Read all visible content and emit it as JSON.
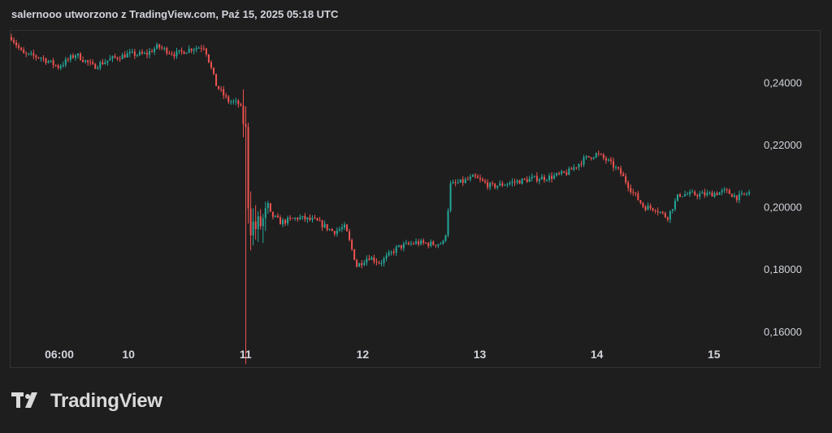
{
  "caption": "salernooo utworzono z TradingView.com, Paź 15, 2025 05:18 UTC",
  "logo": {
    "icon": "tradingview-logo-icon",
    "text": "TradingView"
  },
  "colors": {
    "background": "#1e1e1e",
    "up": "#26a69a",
    "down": "#ef5350",
    "text": "#d1d4dc",
    "border": "#333333"
  },
  "chart_data": {
    "type": "candlestick",
    "title": "",
    "xlabel": "",
    "ylabel": "",
    "ylim": [
      0.149,
      0.256
    ],
    "grid": false,
    "y_ticks": [
      "0,24000",
      "0,22000",
      "0,20000",
      "0,18000",
      "0,16000"
    ],
    "y_tick_values": [
      0.24,
      0.22,
      0.2,
      0.18,
      0.16
    ],
    "x_ticks": [
      "06:00",
      "10",
      "11",
      "12",
      "13",
      "14",
      "15"
    ],
    "x_tick_days": [
      9.25,
      10,
      11,
      12,
      13,
      14,
      15
    ],
    "x_range_days": [
      9.0,
      15.3
    ],
    "series": [
      {
        "values_close_by_day": [
          [
            9.0,
            0.2545
          ],
          [
            9.1,
            0.249
          ],
          [
            9.25,
            0.248
          ],
          [
            9.4,
            0.245
          ],
          [
            9.55,
            0.249
          ],
          [
            9.7,
            0.245
          ],
          [
            9.85,
            0.2475
          ],
          [
            10.0,
            0.249
          ],
          [
            10.15,
            0.249
          ],
          [
            10.25,
            0.2515
          ],
          [
            10.4,
            0.249
          ],
          [
            10.55,
            0.251
          ],
          [
            10.65,
            0.2515
          ],
          [
            10.75,
            0.239
          ],
          [
            10.85,
            0.234
          ],
          [
            10.95,
            0.233
          ],
          [
            11.0,
            0.225
          ],
          [
            11.03,
            0.195
          ],
          [
            11.1,
            0.193
          ],
          [
            11.2,
            0.198
          ],
          [
            11.3,
            0.195
          ],
          [
            11.45,
            0.1965
          ],
          [
            11.6,
            0.1955
          ],
          [
            11.75,
            0.192
          ],
          [
            11.85,
            0.1935
          ],
          [
            11.95,
            0.181
          ],
          [
            12.05,
            0.184
          ],
          [
            12.15,
            0.182
          ],
          [
            12.3,
            0.187
          ],
          [
            12.45,
            0.1885
          ],
          [
            12.6,
            0.188
          ],
          [
            12.7,
            0.1885
          ],
          [
            12.75,
            0.207
          ],
          [
            12.85,
            0.208
          ],
          [
            12.95,
            0.2095
          ],
          [
            13.1,
            0.2065
          ],
          [
            13.3,
            0.208
          ],
          [
            13.45,
            0.209
          ],
          [
            13.6,
            0.2095
          ],
          [
            13.75,
            0.211
          ],
          [
            13.9,
            0.2155
          ],
          [
            14.0,
            0.217
          ],
          [
            14.1,
            0.2145
          ],
          [
            14.2,
            0.211
          ],
          [
            14.3,
            0.205
          ],
          [
            14.4,
            0.2
          ],
          [
            14.5,
            0.1995
          ],
          [
            14.6,
            0.1965
          ],
          [
            14.7,
            0.204
          ],
          [
            14.8,
            0.204
          ],
          [
            14.95,
            0.204
          ],
          [
            15.1,
            0.205
          ],
          [
            15.2,
            0.203
          ],
          [
            15.3,
            0.2045
          ]
        ],
        "spike_low": [
          11.0,
          0.1495
        ]
      }
    ]
  }
}
